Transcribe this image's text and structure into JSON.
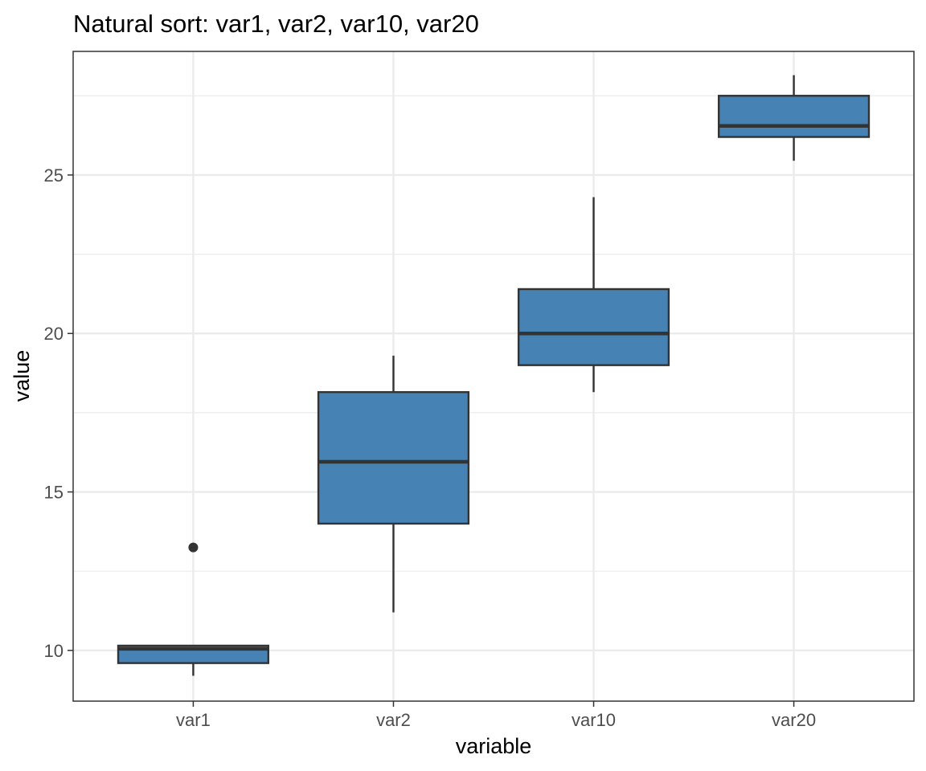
{
  "chart_data": {
    "type": "boxplot",
    "title": "Natural sort: var1, var2, var10, var20",
    "xlabel": "variable",
    "ylabel": "value",
    "categories": [
      "var1",
      "var2",
      "var10",
      "var20"
    ],
    "ylim": [
      8.4,
      28.9
    ],
    "yticks": [
      10,
      15,
      20,
      25
    ],
    "ytick_labels": [
      "10",
      "15",
      "20",
      "25"
    ],
    "grid": true,
    "fill_color": "#4682B4",
    "line_color": "#333333",
    "boxes": [
      {
        "category": "var1",
        "lower_whisker": 9.2,
        "q1": 9.6,
        "median": 10.05,
        "q3": 10.15,
        "upper_whisker": 10.15,
        "outliers": [
          13.25
        ]
      },
      {
        "category": "var2",
        "lower_whisker": 11.2,
        "q1": 14.0,
        "median": 15.95,
        "q3": 18.15,
        "upper_whisker": 19.3,
        "outliers": []
      },
      {
        "category": "var10",
        "lower_whisker": 18.15,
        "q1": 19.0,
        "median": 20.0,
        "q3": 21.4,
        "upper_whisker": 24.3,
        "outliers": []
      },
      {
        "category": "var20",
        "lower_whisker": 25.45,
        "q1": 26.2,
        "median": 26.55,
        "q3": 27.5,
        "upper_whisker": 28.15,
        "outliers": []
      }
    ]
  }
}
